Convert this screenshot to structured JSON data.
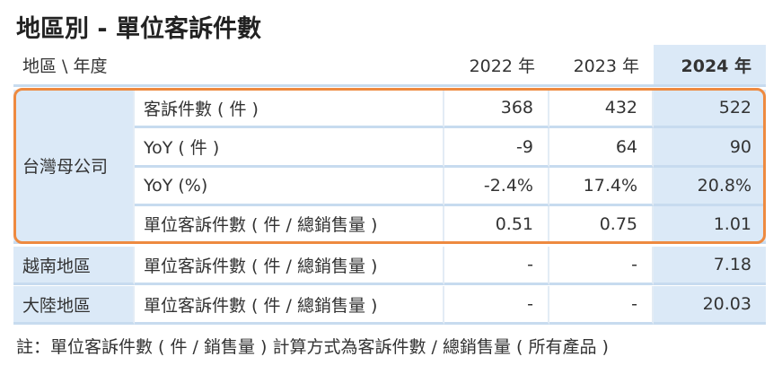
{
  "title": "地區別 - 單位客訴件數",
  "table": {
    "header": [
      "地區 \\ 年度",
      "2022 年",
      "2023 年",
      "2024 年"
    ],
    "groups": [
      {
        "region": "台灣母公司",
        "rows": [
          {
            "item": "客訴件數 ( 件 )",
            "values": [
              "368",
              "432",
              "522"
            ]
          },
          {
            "item": "YoY ( 件 )",
            "values": [
              "-9",
              "64",
              "90"
            ]
          },
          {
            "item": "YoY (%)",
            "values": [
              "-2.4%",
              "17.4%",
              "20.8%"
            ]
          },
          {
            "item": "單位客訴件數 ( 件 / 總銷售量 )",
            "values": [
              "0.51",
              "0.75",
              "1.01"
            ]
          }
        ]
      },
      {
        "region": "越南地區",
        "rows": [
          {
            "item": "單位客訴件數 ( 件 / 總銷售量 )",
            "values": [
              "-",
              "-",
              "7.18"
            ]
          }
        ]
      },
      {
        "region": "大陸地區",
        "rows": [
          {
            "item": "單位客訴件數 ( 件 / 總銷售量 )",
            "values": [
              "-",
              "-",
              "20.03"
            ]
          }
        ]
      }
    ]
  },
  "footnote": "註：單位客訴件數 ( 件 / 銷售量 ) 計算方式為客訴件數 / 總銷售量 ( 所有產品 )"
}
